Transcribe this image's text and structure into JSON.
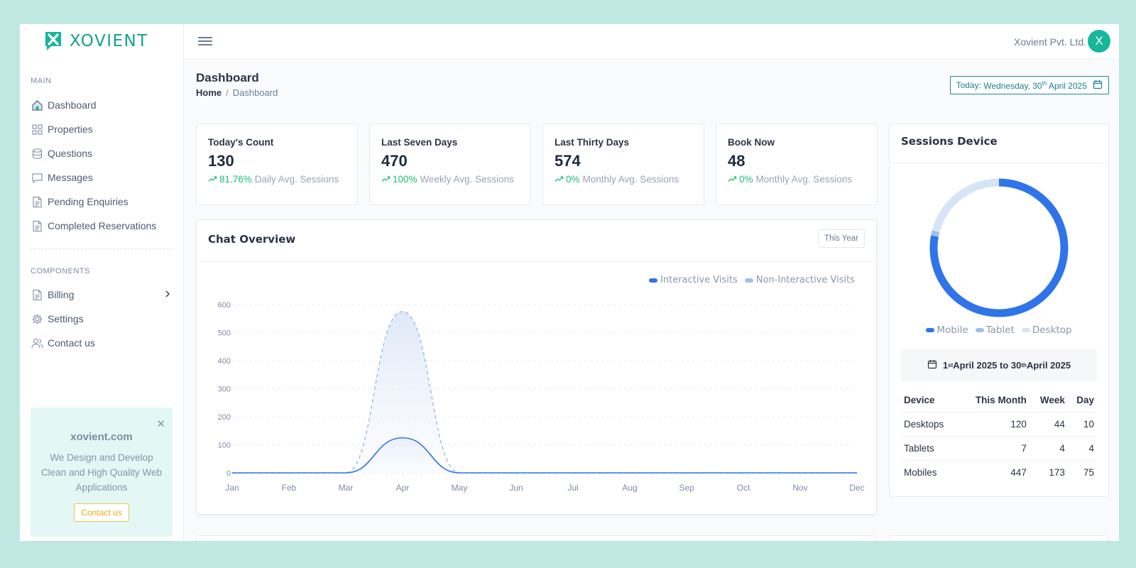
{
  "brand": {
    "name": "XOVIENT",
    "accent": "#12a28b"
  },
  "sidebar": {
    "main_title": "MAIN",
    "main_items": [
      {
        "label": "Dashboard",
        "icon": "home-icon"
      },
      {
        "label": "Properties",
        "icon": "grid-icon"
      },
      {
        "label": "Questions",
        "icon": "database-icon"
      },
      {
        "label": "Messages",
        "icon": "message-icon"
      },
      {
        "label": "Pending Enquiries",
        "icon": "document-icon"
      },
      {
        "label": "Completed Reservations",
        "icon": "document-icon"
      }
    ],
    "components_title": "COMPONENTS",
    "component_items": [
      {
        "label": "Billing",
        "icon": "document-icon"
      },
      {
        "label": "Settings",
        "icon": "gear-icon"
      },
      {
        "label": "Contact us",
        "icon": "users-icon"
      }
    ],
    "promo": {
      "title": "xovient.com",
      "text": "We Design and Develop Clean and High Quality Web Applications",
      "button": "Contact us"
    }
  },
  "topbar": {
    "company": "Xovient Pvt. Ltd.",
    "avatar_letter": "X"
  },
  "page": {
    "title": "Dashboard",
    "breadcrumb": {
      "home": "Home",
      "sep": "/",
      "current": "Dashboard"
    },
    "today": {
      "prefix": "Today:",
      "date_pre": "Wednesday, 30",
      "date_sup": "th",
      "date_post": " April 2025"
    }
  },
  "stats": [
    {
      "label": "Today's Count",
      "value": "130",
      "pct": "81.76%",
      "sub": "Daily Avg. Sessions"
    },
    {
      "label": "Last Seven Days",
      "value": "470",
      "pct": "100%",
      "sub": "Weekly Avg. Sessions"
    },
    {
      "label": "Last Thirty Days",
      "value": "574",
      "pct": "0%",
      "sub": "Monthly Avg. Sessions"
    },
    {
      "label": "Book Now",
      "value": "48",
      "pct": "0%",
      "sub": "Monthly Avg. Sessions"
    }
  ],
  "chat_overview": {
    "title": "Chat Overview",
    "range_button": "This Year"
  },
  "chart_data": {
    "type": "area",
    "title": "",
    "categories": [
      "Jan",
      "Feb",
      "Mar",
      "Apr",
      "May",
      "Jun",
      "Jul",
      "Aug",
      "Sep",
      "Oct",
      "Nov",
      "Dec"
    ],
    "y_ticks": [
      0,
      100,
      200,
      300,
      400,
      500,
      600
    ],
    "ylim": [
      0,
      600
    ],
    "grid": true,
    "legend_position": "top-right",
    "series": [
      {
        "name": "Interactive Visits",
        "color": "#2f74e8",
        "values": [
          0,
          0,
          0,
          125,
          0,
          0,
          0,
          0,
          0,
          0,
          0,
          0
        ]
      },
      {
        "name": "Non-Interactive Visits",
        "color": "#9fbfee",
        "dashed": true,
        "values": [
          0,
          0,
          0,
          575,
          0,
          0,
          0,
          0,
          0,
          0,
          0,
          0
        ]
      }
    ]
  },
  "sessions": {
    "title": "Sessions Device",
    "donut": [
      {
        "name": "Mobile",
        "value": 447,
        "color": "#2f74e8"
      },
      {
        "name": "Tablet",
        "value": 7,
        "color": "#9fbfee"
      },
      {
        "name": "Desktop",
        "value": 120,
        "color": "#d6e4f8"
      }
    ],
    "range": {
      "start": "1",
      "start_sup": "st",
      "mid": " April 2025 to 30",
      "end_sup": "th",
      "end": " April 2025"
    },
    "table": {
      "headers": [
        "Device",
        "This Month",
        "Week",
        "Day"
      ],
      "rows": [
        [
          "Desktops",
          "120",
          "44",
          "10"
        ],
        [
          "Tablets",
          "7",
          "4",
          "4"
        ],
        [
          "Mobiles",
          "447",
          "173",
          "75"
        ]
      ]
    }
  }
}
